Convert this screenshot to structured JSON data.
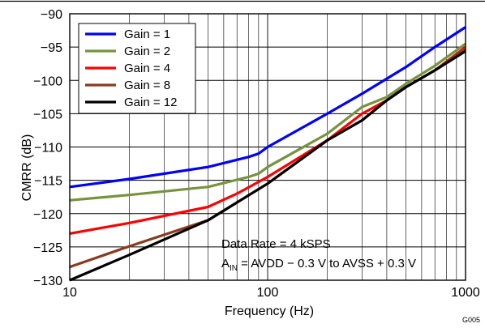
{
  "chart_data": {
    "type": "line",
    "title": "",
    "xlabel": "Frequency (Hz)",
    "ylabel": "CMRR (dB)",
    "x_scale": "log",
    "xlim": [
      10,
      1000
    ],
    "ylim": [
      -130,
      -90
    ],
    "grid": true,
    "x_tick_labels": [
      "10",
      "100",
      "1000"
    ],
    "y_tick_labels": [
      "−90",
      "−95",
      "−100",
      "−105",
      "−110",
      "−115",
      "−120",
      "−125",
      "−130"
    ],
    "legend_position": "top-left",
    "series": [
      {
        "name": "Gain = 1",
        "color": "#0000ff",
        "x": [
          10,
          20,
          50,
          80,
          90,
          100,
          200,
          300,
          500,
          700,
          1000
        ],
        "y": [
          -116,
          -114.8,
          -113,
          -111.5,
          -111,
          -110,
          -105,
          -102,
          -98,
          -95,
          -92
        ]
      },
      {
        "name": "Gain = 2",
        "color": "#77933c",
        "x": [
          10,
          20,
          50,
          80,
          90,
          100,
          200,
          300,
          400,
          500,
          700,
          1000
        ],
        "y": [
          -118,
          -117.2,
          -116,
          -114.5,
          -114,
          -113,
          -108,
          -104,
          -102.5,
          -100.5,
          -97.8,
          -94.5
        ]
      },
      {
        "name": "Gain = 4",
        "color": "#ff0000",
        "x": [
          10,
          20,
          50,
          70,
          100,
          200,
          300,
          400,
          500,
          700,
          1000
        ],
        "y": [
          -123,
          -121.4,
          -119,
          -117,
          -114.5,
          -109,
          -105,
          -103,
          -101,
          -98.5,
          -95
        ]
      },
      {
        "name": "Gain = 8",
        "color": "#8b3a1e",
        "x": [
          10,
          20,
          50,
          100,
          200,
          300,
          400,
          500,
          700,
          1000
        ],
        "y": [
          -128,
          -124.9,
          -121,
          -115.5,
          -109,
          -106,
          -103,
          -101,
          -98.5,
          -95.2
        ]
      },
      {
        "name": "Gain = 12",
        "color": "#000000",
        "x": [
          10,
          20,
          50,
          100,
          200,
          300,
          400,
          500,
          700,
          1000
        ],
        "y": [
          -130,
          -126.2,
          -121,
          -115.5,
          -109,
          -106,
          -103,
          -101,
          -98.5,
          -95.6
        ]
      }
    ],
    "annotations": {
      "line1": "Data Rate = 4 kSPS",
      "line2_main": "A",
      "line2_sub": "IN",
      "line2_rest": " = AVDD − 0.3 V to AVSS + 0.3 V"
    },
    "figure_id": "G005"
  }
}
